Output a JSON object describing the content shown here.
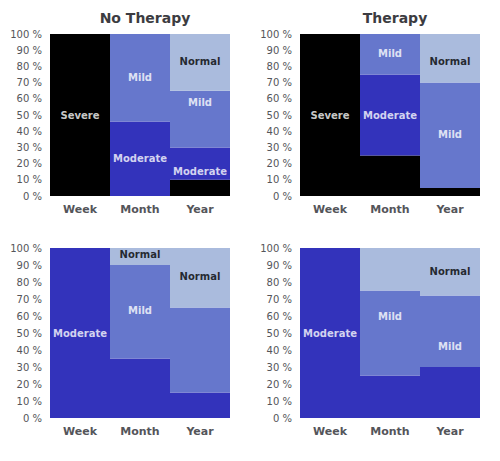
{
  "chart_data": [
    {
      "type": "bar",
      "title": "No Therapy",
      "stacked": true,
      "grid": false,
      "categories": [
        "Week",
        "Month",
        "Year"
      ],
      "series": [
        {
          "name": "Severe",
          "color": "#000000",
          "values": [
            100,
            0,
            10
          ]
        },
        {
          "name": "Moderate",
          "color": "#3333bb",
          "values": [
            0,
            46,
            20
          ]
        },
        {
          "name": "Mild",
          "color": "#6677cc",
          "values": [
            0,
            54,
            35
          ]
        },
        {
          "name": "Normal",
          "color": "#aabbdd",
          "values": [
            0,
            0,
            35
          ]
        }
      ],
      "annotations": [
        {
          "text": "Severe",
          "x": "Week",
          "y": 50,
          "color": "white"
        },
        {
          "text": "Mild",
          "x": "Month",
          "y": 73,
          "color": "white"
        },
        {
          "text": "Normal",
          "x": "Year",
          "y": 83,
          "color": "black"
        },
        {
          "text": "Moderate",
          "x": "Month",
          "y": 23,
          "color": "white"
        },
        {
          "text": "Mild",
          "x": "Year",
          "y": 58,
          "color": "white"
        },
        {
          "text": "Moderate",
          "x": "Year",
          "y": 15,
          "color": "white"
        }
      ],
      "ylim": [
        0,
        100
      ],
      "yticks": [
        {
          "value": 0,
          "label": "0 %"
        },
        {
          "value": 10,
          "label": "10 %"
        },
        {
          "value": 20,
          "label": "20 %"
        },
        {
          "value": 30,
          "label": "30 %"
        },
        {
          "value": 40,
          "label": "40 %"
        },
        {
          "value": 50,
          "label": "50 %"
        },
        {
          "value": 60,
          "label": "60 %"
        },
        {
          "value": 70,
          "label": "70 %"
        },
        {
          "value": 80,
          "label": "80 %"
        },
        {
          "value": 90,
          "label": "90 %"
        },
        {
          "value": 100,
          "label": "100 %"
        }
      ]
    },
    {
      "type": "bar",
      "title": "Therapy",
      "stacked": true,
      "grid": false,
      "categories": [
        "Week",
        "Month",
        "Year"
      ],
      "series": [
        {
          "name": "Severe",
          "color": "#000000",
          "values": [
            100,
            25,
            5
          ]
        },
        {
          "name": "Moderate",
          "color": "#3333bb",
          "values": [
            0,
            50,
            0
          ]
        },
        {
          "name": "Mild",
          "color": "#6677cc",
          "values": [
            0,
            25,
            65
          ]
        },
        {
          "name": "Normal",
          "color": "#aabbdd",
          "values": [
            0,
            0,
            30
          ]
        }
      ],
      "annotations": [
        {
          "text": "Severe",
          "x": "Week",
          "y": 50,
          "color": "white"
        },
        {
          "text": "Mild",
          "x": "Month",
          "y": 88,
          "color": "white"
        },
        {
          "text": "Normal",
          "x": "Year",
          "y": 83,
          "color": "black"
        },
        {
          "text": "Moderate",
          "x": "Month",
          "y": 50,
          "color": "white"
        },
        {
          "text": "Mild",
          "x": "Year",
          "y": 38,
          "color": "white"
        }
      ],
      "ylim": [
        0,
        100
      ],
      "yticks": [
        {
          "value": 0,
          "label": "0 %"
        },
        {
          "value": 10,
          "label": "10 %"
        },
        {
          "value": 20,
          "label": "20 %"
        },
        {
          "value": 30,
          "label": "30 %"
        },
        {
          "value": 40,
          "label": "40 %"
        },
        {
          "value": 50,
          "label": "50 %"
        },
        {
          "value": 60,
          "label": "60 %"
        },
        {
          "value": 70,
          "label": "70 %"
        },
        {
          "value": 80,
          "label": "80 %"
        },
        {
          "value": 90,
          "label": "90 %"
        },
        {
          "value": 100,
          "label": "100 %"
        }
      ]
    },
    {
      "type": "bar",
      "stacked": true,
      "grid": false,
      "categories": [
        "Week",
        "Month",
        "Year"
      ],
      "series": [
        {
          "name": "Severe",
          "color": "#000000",
          "values": [
            0,
            0,
            0
          ]
        },
        {
          "name": "Moderate",
          "color": "#3333bb",
          "values": [
            100,
            35,
            15
          ]
        },
        {
          "name": "Mild",
          "color": "#6677cc",
          "values": [
            0,
            55,
            50
          ]
        },
        {
          "name": "Normal",
          "color": "#aabbdd",
          "values": [
            0,
            10,
            35
          ]
        }
      ],
      "annotations": [
        {
          "text": "Moderate",
          "x": "Week",
          "y": 50,
          "color": "white"
        },
        {
          "text": "Normal",
          "x": "Year",
          "y": 83,
          "color": "black"
        },
        {
          "text": "Mild",
          "x": "Month",
          "y": 63,
          "color": "white"
        },
        {
          "text": "Normal",
          "x": "Month",
          "y": 96,
          "color": "black"
        }
      ],
      "ylim": [
        0,
        100
      ],
      "yticks": [
        {
          "value": 0,
          "label": "0 %"
        },
        {
          "value": 10,
          "label": "10 %"
        },
        {
          "value": 20,
          "label": "20 %"
        },
        {
          "value": 30,
          "label": "30 %"
        },
        {
          "value": 40,
          "label": "40 %"
        },
        {
          "value": 50,
          "label": "50 %"
        },
        {
          "value": 60,
          "label": "60 %"
        },
        {
          "value": 70,
          "label": "70 %"
        },
        {
          "value": 80,
          "label": "80 %"
        },
        {
          "value": 90,
          "label": "90 %"
        },
        {
          "value": 100,
          "label": "100 %"
        }
      ]
    },
    {
      "type": "bar",
      "stacked": true,
      "grid": false,
      "categories": [
        "Week",
        "Month",
        "Year"
      ],
      "series": [
        {
          "name": "Severe",
          "color": "#000000",
          "values": [
            0,
            0,
            0
          ]
        },
        {
          "name": "Moderate",
          "color": "#3333bb",
          "values": [
            100,
            25,
            30
          ]
        },
        {
          "name": "Mild",
          "color": "#6677cc",
          "values": [
            0,
            50,
            42
          ]
        },
        {
          "name": "Normal",
          "color": "#aabbdd",
          "values": [
            0,
            25,
            28
          ]
        }
      ],
      "annotations": [
        {
          "text": "Moderate",
          "x": "Week",
          "y": 50,
          "color": "white"
        },
        {
          "text": "Normal",
          "x": "Year",
          "y": 86,
          "color": "black"
        },
        {
          "text": "Mild",
          "x": "Month",
          "y": 60,
          "color": "white"
        },
        {
          "text": "Mild",
          "x": "Year",
          "y": 42,
          "color": "white"
        }
      ],
      "ylim": [
        0,
        100
      ],
      "yticks": [
        {
          "value": 0,
          "label": "0 %"
        },
        {
          "value": 10,
          "label": "10 %"
        },
        {
          "value": 20,
          "label": "20 %"
        },
        {
          "value": 30,
          "label": "30 %"
        },
        {
          "value": 40,
          "label": "40 %"
        },
        {
          "value": 50,
          "label": "50 %"
        },
        {
          "value": 60,
          "label": "60 %"
        },
        {
          "value": 70,
          "label": "70 %"
        },
        {
          "value": 80,
          "label": "80 %"
        },
        {
          "value": 90,
          "label": "90 %"
        },
        {
          "value": 100,
          "label": "100 %"
        }
      ]
    }
  ]
}
